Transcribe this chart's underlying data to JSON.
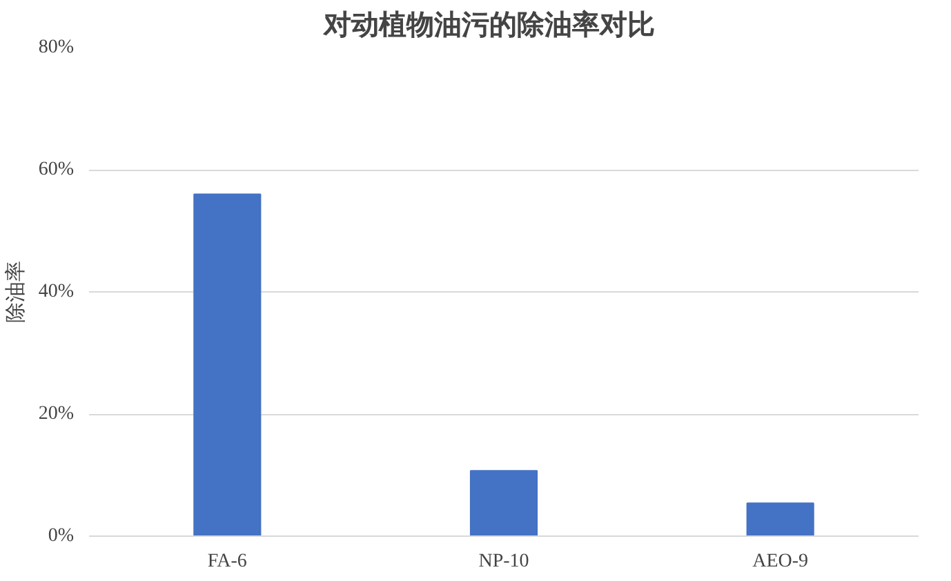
{
  "chart_data": {
    "type": "bar",
    "title": "对动植物油污的除油率对比",
    "ylabel": "除油率",
    "categories": [
      "FA-6",
      "NP-10",
      "AEO-9"
    ],
    "values": [
      56,
      10.7,
      5.4
    ],
    "color": "#4472c4",
    "ylim": [
      0,
      80
    ],
    "yticks": [
      {
        "value": 0,
        "label": "0%"
      },
      {
        "value": 20,
        "label": "20%"
      },
      {
        "value": 40,
        "label": "40%"
      },
      {
        "value": 60,
        "label": "60%"
      },
      {
        "value": 80,
        "label": "80%"
      }
    ],
    "grid": "y"
  }
}
